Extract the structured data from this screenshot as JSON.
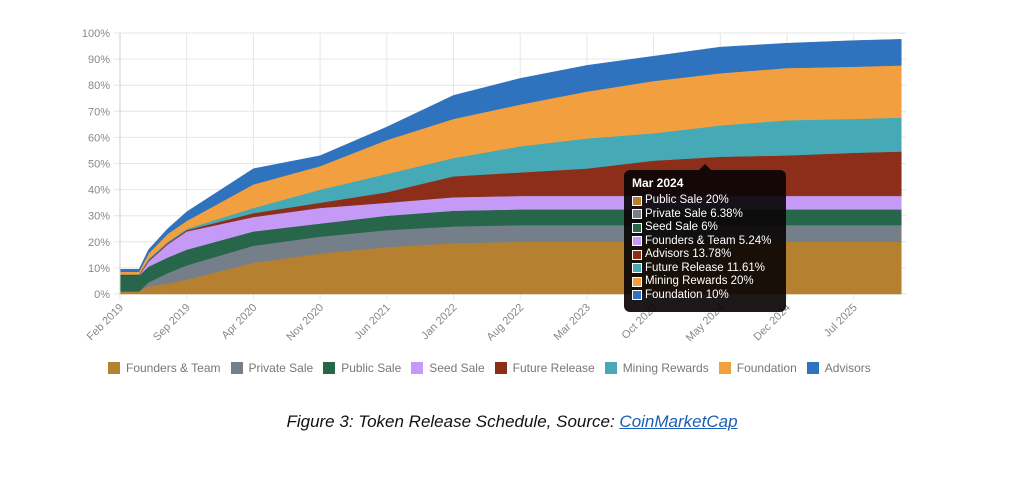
{
  "chart_data": {
    "type": "area",
    "stacked": true,
    "title": "",
    "xlabel": "",
    "ylabel": "",
    "ylim": [
      0,
      100
    ],
    "y_ticks": [
      "0%",
      "10%",
      "20%",
      "30%",
      "40%",
      "50%",
      "60%",
      "70%",
      "80%",
      "90%",
      "100%"
    ],
    "x_tick_labels": [
      "Feb 2019",
      "Sep 2019",
      "Apr 2020",
      "Nov 2020",
      "Jun 2021",
      "Jan 2022",
      "Aug 2022",
      "Mar 2023",
      "Oct 2023",
      "May 2024",
      "Dec 2024",
      "Jul 2025"
    ],
    "grid": true,
    "legend_position": "bottom",
    "x": [
      "Feb 2019",
      "Apr 2019",
      "May 2019",
      "Jul 2019",
      "Sep 2019",
      "Apr 2020",
      "Nov 2020",
      "Jun 2021",
      "Jan 2022",
      "Aug 2022",
      "Mar 2023",
      "Oct 2023",
      "May 2024",
      "Dec 2024",
      "Jul 2025",
      "Dec 2025"
    ],
    "series": [
      {
        "name": "Founders & Team",
        "color": "#b5802f",
        "values": [
          1,
          1,
          3,
          4,
          5.5,
          12,
          15.5,
          18,
          19.5,
          20,
          20,
          20,
          20,
          20,
          20,
          20
        ]
      },
      {
        "name": "Private Sale",
        "color": "#757f8a",
        "values": [
          0,
          0,
          1.5,
          4,
          5.5,
          6.5,
          6.5,
          6.5,
          6.4,
          6.4,
          6.4,
          6.4,
          6.4,
          6.4,
          6.4,
          6.4
        ]
      },
      {
        "name": "Public Sale",
        "color": "#27664a",
        "values": [
          6,
          6,
          6,
          6,
          6,
          5.5,
          5,
          5.5,
          6,
          6,
          6,
          6,
          6,
          6,
          6,
          6
        ]
      },
      {
        "name": "Seed Sale",
        "color": "#c59af7",
        "values": [
          0,
          0,
          2,
          5,
          7,
          5.5,
          6,
          5,
          5.2,
          5.2,
          5.2,
          5.2,
          5.2,
          5.2,
          5.2,
          5.2
        ]
      },
      {
        "name": "Future Release",
        "color": "#8c2e1a",
        "values": [
          0.5,
          0.5,
          0.5,
          0.5,
          0.5,
          1.5,
          2,
          4,
          8,
          9,
          10.5,
          13.5,
          15,
          15.5,
          16.5,
          17
        ]
      },
      {
        "name": "Mining Rewards",
        "color": "#45aab5",
        "values": [
          0,
          0,
          0.5,
          0.5,
          0.5,
          2,
          5,
          7,
          7,
          10,
          11.5,
          10.5,
          12,
          13.5,
          13,
          13
        ]
      },
      {
        "name": "Foundation",
        "color": "#f2a03f",
        "values": [
          1,
          1,
          2,
          3,
          3,
          9,
          9,
          13,
          15,
          16,
          18,
          20,
          20,
          20,
          20,
          20
        ]
      },
      {
        "name": "Advisors",
        "color": "#2f73bf",
        "values": [
          1,
          1,
          1.5,
          2,
          3.5,
          6,
          4,
          5,
          9,
          10,
          10,
          9.5,
          10,
          9.5,
          10,
          10
        ]
      }
    ],
    "tooltip": {
      "title": "Mar 2024",
      "rows": [
        {
          "label": "Public Sale 20%",
          "color": "#b5802f"
        },
        {
          "label": "Private Sale 6.38%",
          "color": "#757f8a"
        },
        {
          "label": "Seed Sale 6%",
          "color": "#27664a"
        },
        {
          "label": "Founders & Team 5.24%",
          "color": "#c59af7"
        },
        {
          "label": "Advisors 13.78%",
          "color": "#8c2e1a"
        },
        {
          "label": "Future Release 11.61%",
          "color": "#45aab5"
        },
        {
          "label": "Mining Rewards 20%",
          "color": "#f2a03f"
        },
        {
          "label": "Foundation 10%",
          "color": "#2f73bf"
        }
      ]
    }
  },
  "caption": {
    "text": "Figure 3:  Token Release Schedule, Source: ",
    "link_text": "CoinMarketCap"
  }
}
